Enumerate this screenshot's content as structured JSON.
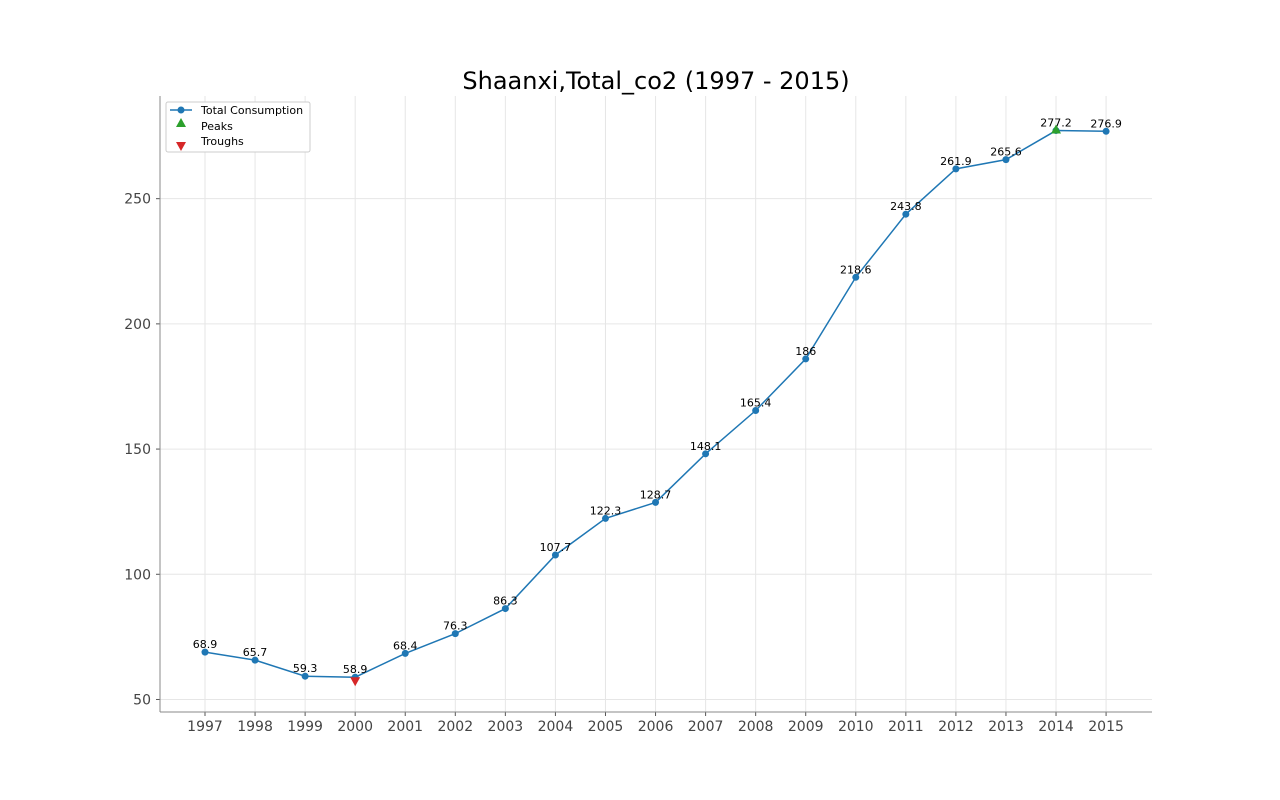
{
  "chart_data": {
    "type": "line",
    "title": "Shaanxi,Total_co2 (1997 - 2015)",
    "xlabel": "",
    "ylabel": "",
    "x": [
      "1997",
      "1998",
      "1999",
      "2000",
      "2001",
      "2002",
      "2003",
      "2004",
      "2005",
      "2006",
      "2007",
      "2008",
      "2009",
      "2010",
      "2011",
      "2012",
      "2013",
      "2014",
      "2015"
    ],
    "series": [
      {
        "name": "Total Consumption",
        "color": "#1f77b4",
        "values": [
          68.9,
          65.7,
          59.3,
          58.9,
          68.4,
          76.3,
          86.3,
          107.7,
          122.3,
          128.7,
          148.1,
          165.4,
          186,
          218.6,
          243.8,
          261.9,
          265.6,
          277.2,
          276.9
        ],
        "data_labels": [
          "68.9",
          "65.7",
          "59.3",
          "58.9",
          "68.4",
          "76.3",
          "86.3",
          "107.7",
          "122.3",
          "128.7",
          "148.1",
          "165.4",
          "186",
          "218.6",
          "243.8",
          "261.9",
          "265.6",
          "277.2",
          "276.9"
        ]
      }
    ],
    "peaks": {
      "name": "Peaks",
      "color": "#2ca02c",
      "x": [
        "2014"
      ],
      "values": [
        277.2
      ]
    },
    "troughs": {
      "name": "Troughs",
      "color": "#d62728",
      "x": [
        "2000"
      ],
      "values": [
        58.9
      ]
    },
    "y_ticks": [
      50,
      100,
      150,
      200,
      250
    ],
    "ylim": [
      45,
      291
    ],
    "grid": true,
    "legend_position": "top-left"
  }
}
